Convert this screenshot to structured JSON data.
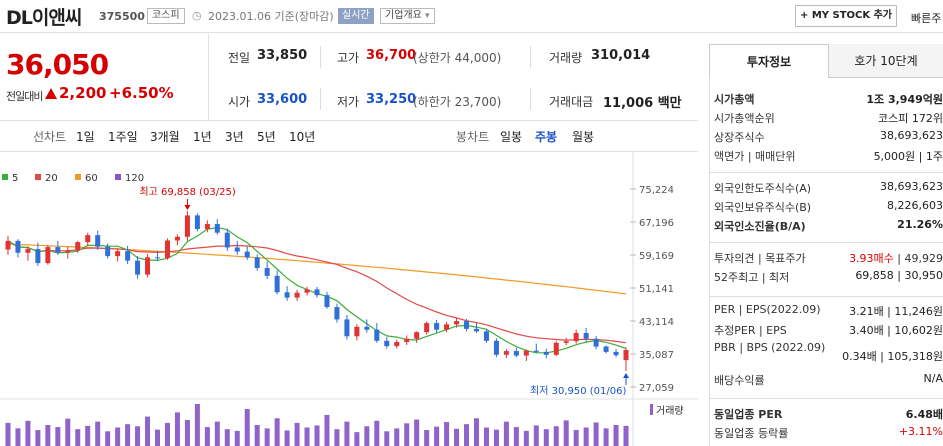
{
  "stock": {
    "name": "DL이앤씨",
    "code": "375500",
    "market": "코스피",
    "date_text": "2023.01.06  기준(장마감)",
    "realtime_label": "실시간",
    "corp_info_label": "기업개요",
    "corp_info_arrow": "▾",
    "mystock_label": "+ MY STOCK 추가",
    "fast_search_label": "빠른주"
  },
  "quote": {
    "price": "36,050",
    "compare_label": "전일대비",
    "change": "2,200",
    "rate": "+6.50%"
  },
  "stats": {
    "prev_label": "전일",
    "prev": "33,850",
    "high_label": "고가",
    "high": "36,700",
    "high_limit": "(상한가 44,000)",
    "volume_label": "거래량",
    "volume": "310,014",
    "open_label": "시가",
    "open": "33,600",
    "low_label": "저가",
    "low": "33,250",
    "low_limit": "(하한가 23,700)",
    "amount_label": "거래대금",
    "amount": "11,006 백만"
  },
  "chart_controls": {
    "line_label": "선차트",
    "line_buttons": [
      "1일",
      "1주일",
      "3개월",
      "1년",
      "3년",
      "5년",
      "10년"
    ],
    "candle_label": "봉차트",
    "candle_buttons": [
      "일봉",
      "주봉",
      "월봉"
    ],
    "candle_selected": "주봉"
  },
  "chart_data": {
    "type": "candlestick",
    "legend": [
      {
        "name": "5",
        "color": "#3cae3c"
      },
      {
        "name": "20",
        "color": "#e34949"
      },
      {
        "name": "60",
        "color": "#f09a2a"
      },
      {
        "name": "120",
        "color": "#8c56c9"
      }
    ],
    "y_ticks": [
      "75,224",
      "67,196",
      "59,169",
      "51,141",
      "43,114",
      "35,087",
      "27,059"
    ],
    "ylim": [
      27059,
      75224
    ],
    "high_annotation": "최고 69,858 (03/25)",
    "low_annotation": "최저 30,950 (01/06)",
    "volume_label": "거래량",
    "candles": [
      [
        60500,
        63800,
        59200,
        62600
      ],
      [
        62600,
        63000,
        58600,
        59700
      ],
      [
        59700,
        61300,
        57800,
        60600
      ],
      [
        60600,
        62200,
        56500,
        57200
      ],
      [
        57200,
        61600,
        56800,
        61100
      ],
      [
        61100,
        62600,
        59200,
        59800
      ],
      [
        59800,
        61200,
        58300,
        60300
      ],
      [
        60300,
        62600,
        59700,
        62300
      ],
      [
        62300,
        64600,
        61300,
        64000
      ],
      [
        64000,
        65100,
        60400,
        61200
      ],
      [
        61200,
        62000,
        58300,
        58900
      ],
      [
        58900,
        60600,
        57600,
        60100
      ],
      [
        60100,
        61400,
        57000,
        57800
      ],
      [
        57800,
        58900,
        53400,
        54400
      ],
      [
        54400,
        59400,
        53700,
        58600
      ],
      [
        58600,
        60200,
        57700,
        58400
      ],
      [
        58400,
        63200,
        58000,
        62700
      ],
      [
        62700,
        64200,
        61500,
        63600
      ],
      [
        63600,
        69858,
        62600,
        68800
      ],
      [
        68800,
        69300,
        64900,
        65500
      ],
      [
        65500,
        67600,
        64700,
        66700
      ],
      [
        66700,
        67900,
        64100,
        64600
      ],
      [
        64600,
        65600,
        60200,
        61000
      ],
      [
        61000,
        62600,
        59200,
        60000
      ],
      [
        60000,
        61200,
        58000,
        58600
      ],
      [
        58600,
        59300,
        55300,
        56000
      ],
      [
        56000,
        57600,
        53300,
        54100
      ],
      [
        54100,
        55400,
        49600,
        50100
      ],
      [
        50100,
        51600,
        48000,
        48800
      ],
      [
        48800,
        50700,
        48000,
        50000
      ],
      [
        50000,
        51400,
        49300,
        50800
      ],
      [
        50800,
        51400,
        48800,
        49400
      ],
      [
        49400,
        50200,
        46100,
        46500
      ],
      [
        46500,
        47300,
        42700,
        43500
      ],
      [
        43500,
        44600,
        38600,
        39400
      ],
      [
        39400,
        42300,
        38400,
        41700
      ],
      [
        41700,
        43500,
        40300,
        41000
      ],
      [
        41000,
        42600,
        37800,
        38300
      ],
      [
        38300,
        39200,
        36400,
        37000
      ],
      [
        37000,
        38600,
        36400,
        38000
      ],
      [
        38000,
        39600,
        37300,
        38800
      ],
      [
        38800,
        40600,
        37800,
        40400
      ],
      [
        40400,
        43000,
        39800,
        42600
      ],
      [
        42600,
        43400,
        40300,
        41000
      ],
      [
        41000,
        42900,
        40400,
        42300
      ],
      [
        42300,
        43900,
        41500,
        43100
      ],
      [
        43100,
        43600,
        40600,
        41200
      ],
      [
        41200,
        42600,
        40200,
        40600
      ],
      [
        40600,
        41200,
        37800,
        38300
      ],
      [
        38300,
        38900,
        34300,
        34900
      ],
      [
        34900,
        36300,
        34100,
        35800
      ],
      [
        35800,
        36600,
        34300,
        34700
      ],
      [
        34700,
        36200,
        33400,
        35900
      ],
      [
        35900,
        37600,
        35300,
        35600
      ],
      [
        35600,
        36400,
        34000,
        34900
      ],
      [
        34900,
        38300,
        34600,
        37800
      ],
      [
        37800,
        39000,
        37200,
        38200
      ],
      [
        38200,
        41000,
        37600,
        40200
      ],
      [
        40200,
        41400,
        38000,
        38800
      ],
      [
        38800,
        39500,
        36300,
        36900
      ],
      [
        36900,
        37200,
        35200,
        35600
      ],
      [
        35600,
        36300,
        34300,
        34800
      ],
      [
        33600,
        36700,
        30950,
        36050
      ]
    ],
    "volumes": [
      55,
      42,
      60,
      38,
      50,
      45,
      65,
      40,
      48,
      58,
      35,
      44,
      52,
      47,
      70,
      39,
      55,
      80,
      62,
      100,
      45,
      58,
      40,
      36,
      88,
      50,
      42,
      66,
      37,
      55,
      44,
      49,
      74,
      40,
      58,
      33,
      47,
      60,
      35,
      42,
      54,
      63,
      38,
      46,
      57,
      41,
      52,
      66,
      44,
      39,
      58,
      45,
      36,
      49,
      40,
      47,
      61,
      38,
      44,
      56,
      42,
      50,
      48
    ]
  },
  "panel": {
    "tab_invest": "투자정보",
    "tab_hoga": "호가 10단계",
    "rows1": [
      {
        "k": "시가총액",
        "v": "1조 3,949억원",
        "bold": true
      },
      {
        "k": "시가총액순위",
        "v": "코스피 172위"
      },
      {
        "k": "상장주식수",
        "v": "38,693,623"
      },
      {
        "k": "액면가 | 매매단위",
        "v": "5,000원 | 1주"
      }
    ],
    "rows2": [
      {
        "k": "외국인한도주식수(A)",
        "v": "38,693,623"
      },
      {
        "k": "외국인보유주식수(B)",
        "v": "8,226,603"
      },
      {
        "k": "외국인소진율(B/A)",
        "v": "21.26%",
        "bold": true
      }
    ],
    "opinion_label": "투자의견 | 목표주가",
    "opinion_value": "3.93매수",
    "target_price": "49,929",
    "week52_label": "52주최고 | 최저",
    "week52_value": "69,858 | 30,950",
    "per_label": "PER | EPS(2022.09)",
    "per_value": "3.21배 | 11,246원",
    "est_label": "추정PER | EPS",
    "est_value": "3.40배 | 10,602원",
    "pbr_label": "PBR | BPS (2022.09)",
    "pbr_value": "0.34배 | 105,318원",
    "div_label": "배당수익률",
    "div_value": "N/A",
    "ind_per_label": "동일업종 PER",
    "ind_per_value": "6.48배",
    "ind_rate_label": "동일업종 등락률",
    "ind_rate_value": "+3.11%"
  }
}
